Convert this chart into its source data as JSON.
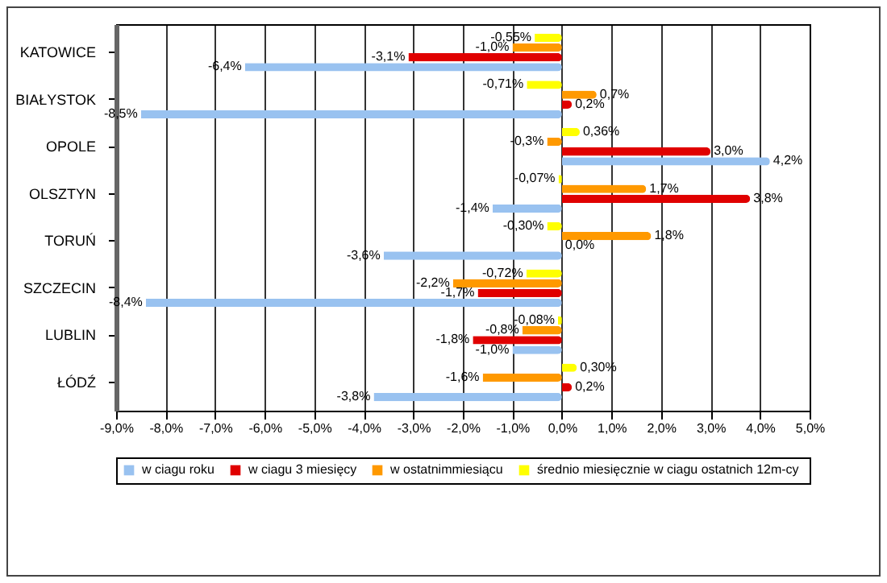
{
  "chart_data": {
    "type": "bar",
    "orientation": "horizontal",
    "categories": [
      "KATOWICE",
      "BIAŁYSTOK",
      "OPOLE",
      "OLSZTYN",
      "TORUŃ",
      "SZCZECIN",
      "LUBLIN",
      "ŁÓDŹ"
    ],
    "series": [
      {
        "name": "w  ciagu roku",
        "color": "#99c2f0",
        "values": [
          -6.4,
          -8.5,
          4.2,
          -1.4,
          -3.6,
          -8.4,
          -1.0,
          -3.8
        ],
        "value_labels": [
          "-6,4%",
          "-8,5%",
          "4,2%",
          "-1,4%",
          "-3,6%",
          "-8,4%",
          "-1,0%",
          "-3,8%"
        ]
      },
      {
        "name": "w  ciagu 3 miesięcy",
        "color": "#e00000",
        "values": [
          -3.1,
          0.2,
          3.0,
          3.8,
          0.0,
          -1.7,
          -1.8,
          0.2
        ],
        "value_labels": [
          "-3,1%",
          "0,2%",
          "3,0%",
          "3,8%",
          "0,0%",
          "-1,7%",
          "-1,8%",
          "0,2%"
        ]
      },
      {
        "name": "w  ostatnimmiesiącu",
        "color": "#ff9900",
        "values": [
          -1.0,
          0.7,
          -0.3,
          1.7,
          1.8,
          -2.2,
          -0.8,
          -1.6
        ],
        "value_labels": [
          "-1,0%",
          "0,7%",
          "-0,3%",
          "1,7%",
          "1,8%",
          "-2,2%",
          "-0,8%",
          "-1,6%"
        ]
      },
      {
        "name": "średnio miesięcznie w  ciagu ostatnich 12m-cy",
        "color": "#ffff00",
        "values": [
          -0.55,
          -0.71,
          0.36,
          -0.07,
          -0.3,
          -0.72,
          -0.08,
          0.3
        ],
        "value_labels": [
          "-0,55%",
          "-0,71%",
          "0,36%",
          "-0,07%",
          "-0,30%",
          "-0,72%",
          "-0,08%",
          "0,30%"
        ]
      }
    ],
    "xlim": [
      -9,
      5
    ],
    "xticks": [
      {
        "value": -9,
        "label": "-9,0%"
      },
      {
        "value": -8,
        "label": "-8,0%"
      },
      {
        "value": -7,
        "label": "-7,0%"
      },
      {
        "value": -6,
        "label": "-6,0%"
      },
      {
        "value": -5,
        "label": "-5,0%"
      },
      {
        "value": -4,
        "label": "-4,0%"
      },
      {
        "value": -3,
        "label": "-3,0%"
      },
      {
        "value": -2,
        "label": "-2,0%"
      },
      {
        "value": -1,
        "label": "-1,0%"
      },
      {
        "value": 0,
        "label": "0,0%"
      },
      {
        "value": 1,
        "label": "1,0%"
      },
      {
        "value": 2,
        "label": "2,0%"
      },
      {
        "value": 3,
        "label": "3,0%"
      },
      {
        "value": 4,
        "label": "4,0%"
      },
      {
        "value": 5,
        "label": "5,0%"
      }
    ],
    "grid": "x",
    "legend": "bottom"
  }
}
